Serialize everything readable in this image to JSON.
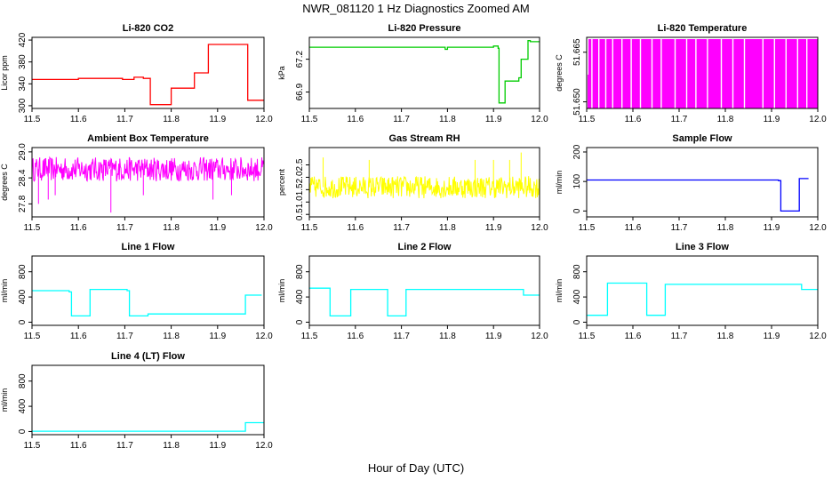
{
  "figure": {
    "title": "NWR_081120  1 Hz Diagnostics Zoomed AM",
    "xlabel": "Hour of Day (UTC)",
    "x_ticks": [
      "11.5",
      "11.6",
      "11.7",
      "11.8",
      "11.9",
      "12.0"
    ]
  },
  "chart_data": [
    {
      "type": "line",
      "title": "Li-820 CO2",
      "ylabel": "Licor ppm",
      "color": "#ff0000",
      "xlim": [
        11.5,
        12.0
      ],
      "ylim": [
        295,
        425
      ],
      "y_ticks": [
        "300",
        "340",
        "380",
        "420"
      ],
      "x": [
        11.5,
        11.6,
        11.695,
        11.72,
        11.74,
        11.75,
        11.755,
        11.79,
        11.8,
        11.81,
        11.84,
        11.85,
        11.875,
        11.88,
        11.955,
        11.965,
        12.0
      ],
      "values": [
        348,
        350,
        348,
        352,
        350,
        350,
        302,
        302,
        332,
        332,
        332,
        360,
        360,
        412,
        412,
        310,
        310
      ],
      "style": "step"
    },
    {
      "type": "line",
      "title": "Li-820 Pressure",
      "ylabel": "kPa",
      "color": "#00cc00",
      "xlim": [
        11.5,
        12.0
      ],
      "ylim": [
        66.75,
        67.4
      ],
      "y_ticks": [
        "66.9",
        "67.2"
      ],
      "y_ticks_extra": [
        "67.2"
      ],
      "x": [
        11.5,
        11.79,
        11.795,
        11.8,
        11.88,
        11.9,
        11.91,
        11.912,
        11.92,
        11.925,
        11.955,
        11.96,
        11.97,
        11.975,
        11.98,
        12.0
      ],
      "values": [
        67.31,
        67.31,
        67.29,
        67.31,
        67.31,
        67.32,
        67.3,
        66.8,
        66.8,
        67.0,
        67.03,
        67.2,
        67.2,
        67.37,
        67.36,
        67.36
      ],
      "style": "step",
      "extra_ticks_top": [
        "67.2"
      ]
    },
    {
      "type": "area",
      "title": "Li-820 Temperature",
      "ylabel": "degrees C",
      "color": "#ff00ff",
      "xlim": [
        11.5,
        12.0
      ],
      "ylim": [
        51.648,
        51.6695
      ],
      "y_ticks": [
        "51.650",
        "51.665"
      ],
      "gaps_x": [
        11.51,
        11.525,
        11.54,
        11.555,
        11.575,
        11.595,
        11.615,
        11.64,
        11.66,
        11.69,
        11.715,
        11.735,
        11.76,
        11.79,
        11.815,
        11.84,
        11.88,
        11.905,
        11.93,
        11.955,
        11.975
      ]
    },
    {
      "type": "line",
      "title": "Ambient Box Temperature",
      "ylabel": "degrees C",
      "color": "#ff00ff",
      "xlim": [
        11.5,
        12.0
      ],
      "ylim": [
        27.5,
        29.1
      ],
      "y_ticks": [
        "27.8",
        "28.4",
        "29.0"
      ],
      "center": 28.6,
      "noise": 0.28,
      "dips": [
        [
          11.514,
          27.8
        ],
        [
          11.535,
          27.9
        ],
        [
          11.55,
          28.0
        ],
        [
          11.67,
          27.6
        ],
        [
          11.74,
          28.0
        ],
        [
          11.89,
          27.9
        ],
        [
          11.93,
          28.0
        ]
      ],
      "style": "noise"
    },
    {
      "type": "line",
      "title": "Gas Stream RH",
      "ylabel": "percent",
      "color": "#ffff00",
      "xlim": [
        11.5,
        12.0
      ],
      "ylim": [
        0.4,
        3.2
      ],
      "y_ticks": [
        "0.5",
        "1.0",
        "1.5",
        "2.0",
        "2.5"
      ],
      "center": 1.6,
      "noise": 0.45,
      "spikes": [
        [
          11.53,
          2.8
        ],
        [
          11.63,
          2.7
        ],
        [
          11.86,
          2.7
        ],
        [
          11.9,
          2.7
        ],
        [
          11.935,
          2.7
        ],
        [
          11.96,
          3.0
        ]
      ],
      "style": "noise"
    },
    {
      "type": "line",
      "title": "Sample Flow",
      "ylabel": "ml/min",
      "color": "#0000ff",
      "xlim": [
        11.5,
        12.0
      ],
      "ylim": [
        -20,
        215
      ],
      "y_ticks": [
        "0",
        "100",
        "200"
      ],
      "x": [
        11.5,
        11.915,
        11.92,
        11.955,
        11.96,
        11.98
      ],
      "values": [
        105,
        103,
        0,
        0,
        110,
        110
      ],
      "style": "step"
    },
    {
      "type": "line",
      "title": "Line 1 Flow",
      "ylabel": "ml/min",
      "color": "#00ffff",
      "xlim": [
        11.5,
        12.0
      ],
      "ylim": [
        -50,
        1050
      ],
      "y_ticks": [
        "0",
        "400",
        "800"
      ],
      "x": [
        11.5,
        11.58,
        11.585,
        11.62,
        11.625,
        11.705,
        11.71,
        11.745,
        11.75,
        11.955,
        11.96,
        11.995
      ],
      "values": [
        500,
        480,
        100,
        100,
        520,
        500,
        100,
        100,
        130,
        130,
        430,
        430
      ],
      "style": "step"
    },
    {
      "type": "line",
      "title": "Line 2 Flow",
      "ylabel": "ml/min",
      "color": "#00ffff",
      "xlim": [
        11.5,
        12.0
      ],
      "ylim": [
        -50,
        1050
      ],
      "y_ticks": [
        "0",
        "400",
        "800"
      ],
      "x": [
        11.5,
        11.54,
        11.545,
        11.585,
        11.59,
        11.665,
        11.67,
        11.705,
        11.71,
        11.96,
        11.965,
        12.0
      ],
      "values": [
        540,
        540,
        100,
        100,
        520,
        520,
        100,
        100,
        520,
        520,
        430,
        430
      ],
      "style": "step"
    },
    {
      "type": "line",
      "title": "Line 3 Flow",
      "ylabel": "ml/min",
      "color": "#00ffff",
      "xlim": [
        11.5,
        12.0
      ],
      "ylim": [
        -50,
        1050
      ],
      "y_ticks": [
        "0",
        "400",
        "800"
      ],
      "x": [
        11.5,
        11.54,
        11.545,
        11.625,
        11.63,
        11.665,
        11.67,
        11.96,
        11.965,
        12.0
      ],
      "values": [
        110,
        110,
        620,
        620,
        110,
        110,
        600,
        600,
        520,
        520
      ],
      "style": "step"
    },
    {
      "type": "line",
      "title": "Line 4 (LT) Flow",
      "ylabel": "ml/min",
      "color": "#00ffff",
      "xlim": [
        11.5,
        12.0
      ],
      "ylim": [
        -50,
        1050
      ],
      "y_ticks": [
        "0",
        "400",
        "800"
      ],
      "x": [
        11.5,
        11.955,
        11.96,
        12.0
      ],
      "values": [
        5,
        5,
        140,
        130
      ],
      "style": "step"
    }
  ]
}
